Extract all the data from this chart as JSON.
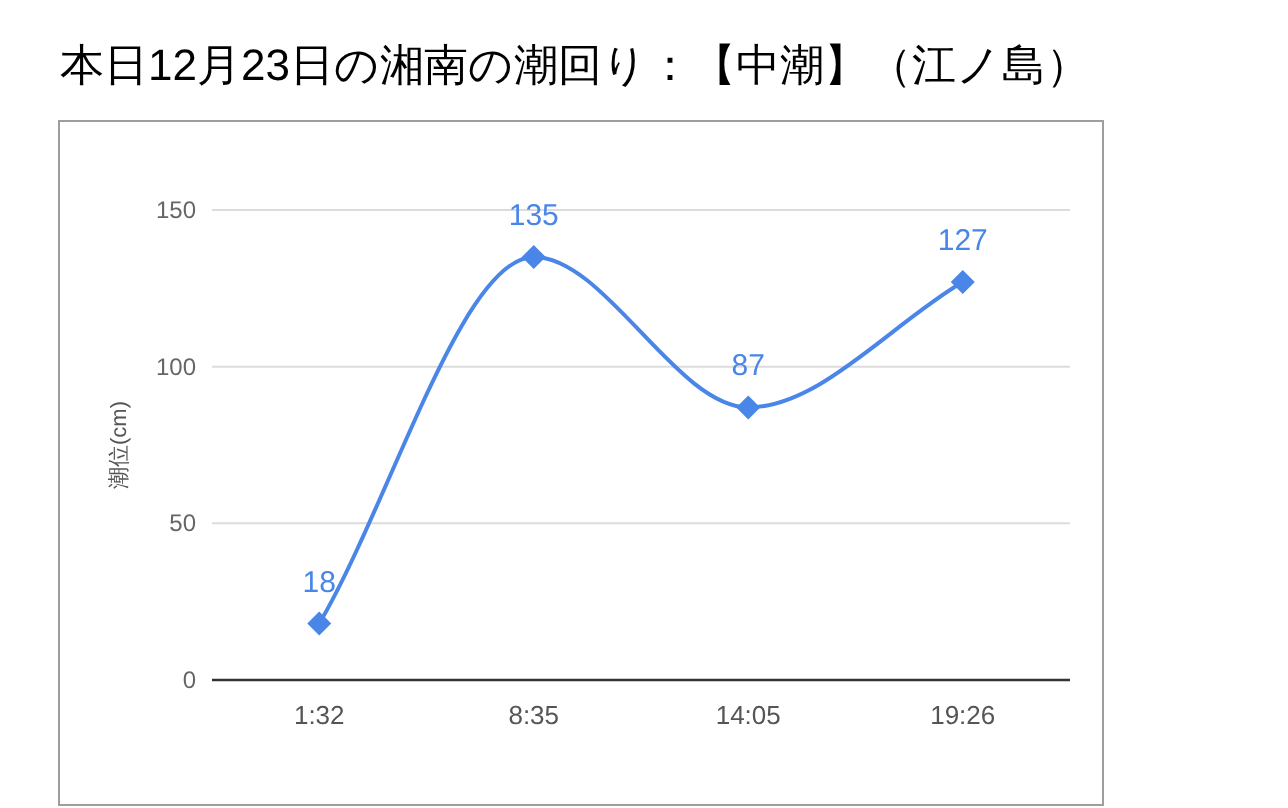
{
  "chart_data": {
    "type": "line",
    "title": "本日12月23日の湘南の潮回り：【中潮】（江ノ島）",
    "ylabel": "潮位(cm)",
    "categories": [
      "1:32",
      "8:35",
      "14:05",
      "19:26"
    ],
    "values": [
      18,
      135,
      87,
      127
    ],
    "color": "#4a86e8",
    "ylim": [
      0,
      150
    ],
    "yticks": [
      0,
      50,
      100,
      150
    ],
    "grid": "y",
    "marker": "diamond",
    "data_labels": true
  }
}
